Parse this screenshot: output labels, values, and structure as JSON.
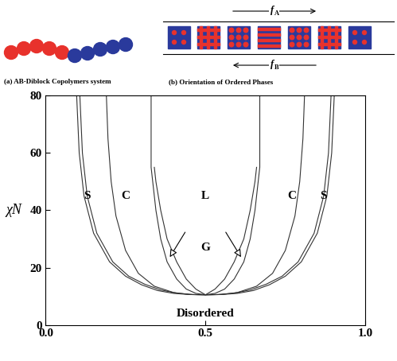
{
  "chart_data": {
    "type": "line",
    "ylabel": "χN",
    "xlim": [
      0,
      1
    ],
    "ylim": [
      0,
      80
    ],
    "xticks": [
      {
        "value": 0,
        "label": "0.0"
      },
      {
        "value": 0.5,
        "label": "0.5"
      },
      {
        "value": 1,
        "label": "1.0"
      }
    ],
    "yticks": [
      0,
      20,
      40,
      60,
      80
    ],
    "grid": false,
    "series": [
      {
        "color": "#333333",
        "x": [
          0.097,
          0.105,
          0.12,
          0.15,
          0.2,
          0.25,
          0.3,
          0.35,
          0.4,
          0.45,
          0.5,
          0.55,
          0.6,
          0.65,
          0.7,
          0.75,
          0.8,
          0.85,
          0.88,
          0.895,
          0.903
        ],
        "values": [
          80,
          60,
          45,
          32,
          22,
          17,
          14,
          12,
          11,
          10.6,
          10.5,
          10.6,
          11,
          12,
          14,
          17,
          22,
          32,
          45,
          60,
          80
        ]
      },
      {
        "color": "#333333",
        "x": [
          0.107,
          0.115,
          0.13,
          0.16,
          0.21,
          0.26,
          0.31,
          0.36,
          0.41,
          0.46,
          0.5,
          0.54,
          0.59,
          0.64,
          0.69,
          0.74,
          0.79,
          0.84,
          0.87,
          0.885,
          0.893
        ],
        "values": [
          80,
          60,
          45,
          32,
          22,
          17,
          14.2,
          12.2,
          11.1,
          10.6,
          10.5,
          10.6,
          11.1,
          12.2,
          14.2,
          17,
          22,
          32,
          45,
          60,
          80
        ]
      },
      {
        "color": "#333333",
        "x": [
          0.19,
          0.195,
          0.205,
          0.22,
          0.25,
          0.29,
          0.34,
          0.4,
          0.45,
          0.5,
          0.55,
          0.6,
          0.66,
          0.71,
          0.75,
          0.78,
          0.795,
          0.805,
          0.81
        ],
        "values": [
          80,
          65,
          50,
          38,
          26,
          18,
          13.5,
          11.3,
          10.6,
          10.5,
          10.6,
          11.3,
          13.5,
          18,
          26,
          38,
          50,
          65,
          80
        ]
      },
      {
        "color": "#333333",
        "x": [
          0.33,
          0.33,
          0.335,
          0.345,
          0.36,
          0.38,
          0.41,
          0.44,
          0.47,
          0.5,
          0.53,
          0.56,
          0.59,
          0.62,
          0.64,
          0.655,
          0.665,
          0.67,
          0.67
        ],
        "values": [
          80,
          55,
          50,
          40,
          30,
          22,
          16,
          12.5,
          11,
          10.5,
          11,
          12.5,
          16,
          22,
          30,
          40,
          50,
          55,
          80
        ]
      },
      {
        "color": "#333333",
        "x": [
          0.34,
          0.345,
          0.36,
          0.38,
          0.41,
          0.44,
          0.47,
          0.5,
          0.53,
          0.56,
          0.59,
          0.62,
          0.64,
          0.655,
          0.66
        ],
        "values": [
          55,
          50,
          40,
          30,
          22,
          16,
          12.5,
          10.5,
          12.5,
          16,
          22,
          30,
          40,
          50,
          55
        ]
      }
    ],
    "annotations": [
      {
        "text": "S",
        "x": 0.13,
        "y": 45
      },
      {
        "text": "C",
        "x": 0.25,
        "y": 45
      },
      {
        "text": "L",
        "x": 0.5,
        "y": 45
      },
      {
        "text": "C",
        "x": 0.77,
        "y": 45
      },
      {
        "text": "S",
        "x": 0.87,
        "y": 45
      },
      {
        "text": "G",
        "x": 0.5,
        "y": 27
      },
      {
        "text": "Disordered",
        "x": 0.5,
        "y": 4
      }
    ],
    "arrows": [
      {
        "from": [
          0.44,
          33
        ],
        "to": [
          0.385,
          23
        ]
      },
      {
        "from": [
          0.56,
          33
        ],
        "to": [
          0.615,
          23
        ]
      }
    ]
  },
  "illustration": {
    "colors": [
      "#e8322c",
      "#2a3a9c"
    ],
    "panel_a": {
      "caption": "(a) AB-Diblock Copolymers system"
    },
    "panel_b": {
      "caption": "(b) Orientation of Ordered Phases",
      "arrow_right": {
        "symbol": "f",
        "subscript": "A"
      },
      "arrow_left": {
        "symbol": "f",
        "subscript": "B"
      }
    }
  }
}
